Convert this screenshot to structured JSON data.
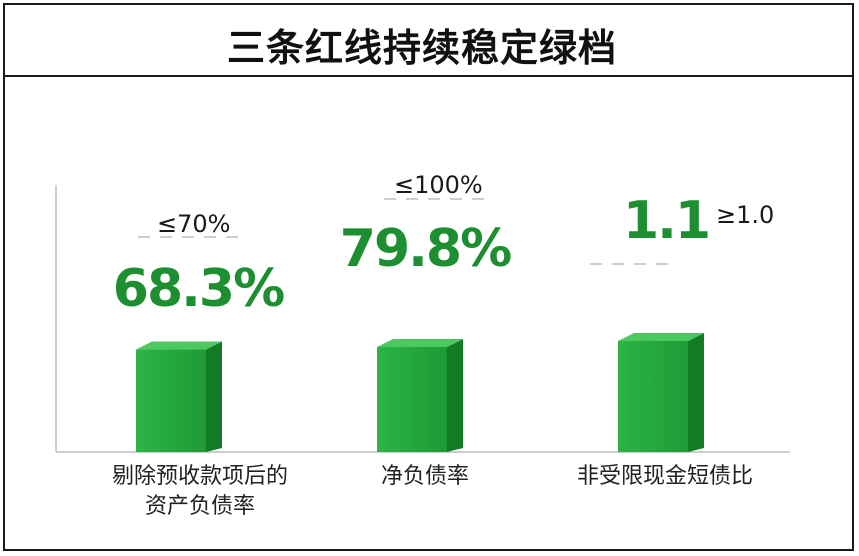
{
  "title": "三条红线持续稳定绿档",
  "colors": {
    "bar_front": "#1f9a35",
    "bar_front_light": "#2cb544",
    "bar_side": "#137a26",
    "bar_top": "#4cc95e",
    "value_text": "#1e8f31",
    "axis": "#bdbdbd",
    "dash": "#bdbdbd"
  },
  "chart_data": {
    "type": "bar",
    "title": "三条红线持续稳定绿档",
    "categories": [
      "剔除预收款项后的资产负债率",
      "净负债率",
      "非受限现金短债比"
    ],
    "category_lines": [
      [
        "剔除预收款项后的",
        "资产负债率"
      ],
      [
        "净负债率"
      ],
      [
        "非受限现金短债比"
      ]
    ],
    "values": [
      68.3,
      79.8,
      1.1
    ],
    "value_labels": [
      "68.3%",
      "79.8%",
      "1.1"
    ],
    "thresholds": [
      70,
      100,
      1.0
    ],
    "threshold_labels": [
      "≤70%",
      "≤100%",
      "≥1.0"
    ],
    "bar_fill": [
      0.683,
      0.7,
      0.74
    ]
  }
}
